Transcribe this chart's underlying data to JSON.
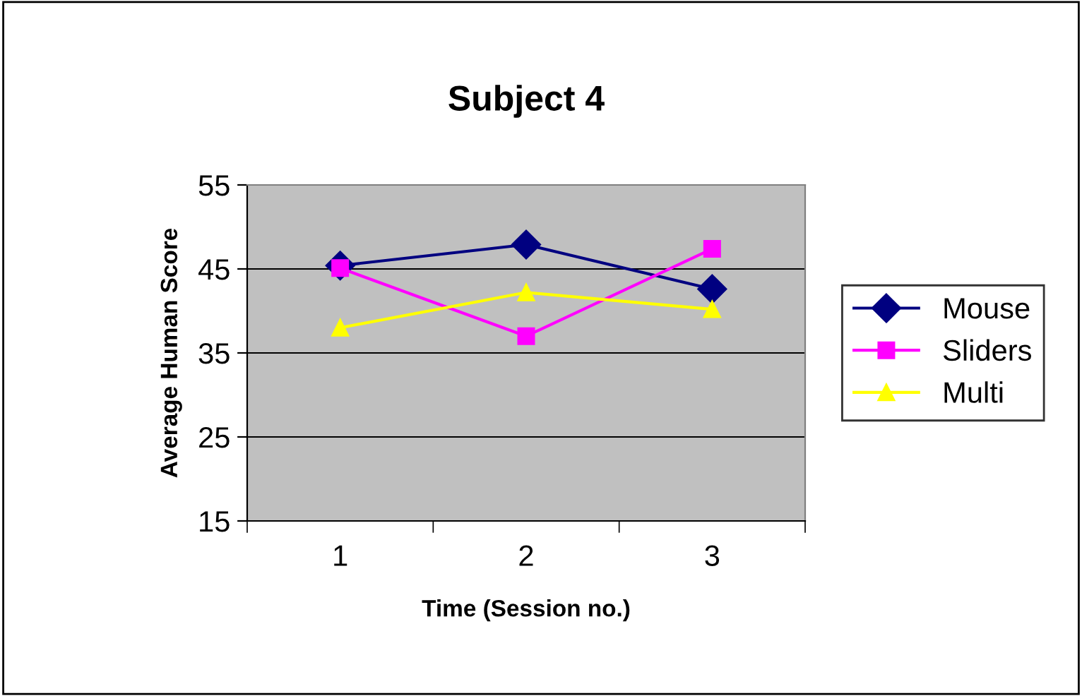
{
  "chart_data": {
    "type": "line",
    "title": "Subject 4",
    "xlabel": "Time (Session no.)",
    "ylabel": "Average Human Score",
    "categories": [
      "1",
      "2",
      "3"
    ],
    "series": [
      {
        "name": "Mouse",
        "color": "#000080",
        "marker": "diamond",
        "values": [
          45.4,
          47.9,
          42.6
        ]
      },
      {
        "name": "Sliders",
        "color": "#ff00ff",
        "marker": "square",
        "values": [
          45.1,
          37.0,
          47.4
        ]
      },
      {
        "name": "Multi",
        "color": "#ffff00",
        "marker": "triangle",
        "values": [
          38.0,
          42.2,
          40.2
        ]
      }
    ],
    "ylim": [
      15,
      55
    ],
    "yticks": [
      15,
      25,
      35,
      45,
      55
    ],
    "grid": "y",
    "legend": "right",
    "line_style": "solid"
  }
}
